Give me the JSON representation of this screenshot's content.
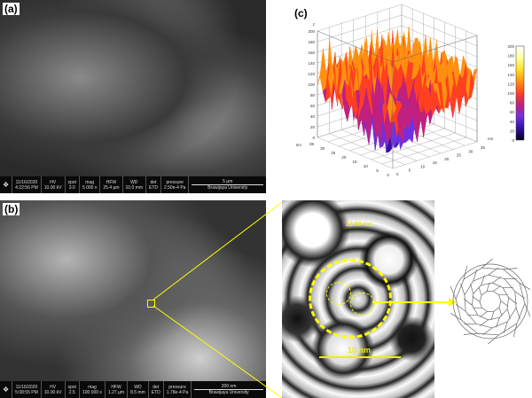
{
  "panels": {
    "a": {
      "label": "(a)",
      "info": {
        "date": "11/16/2020",
        "time": "4:22:56 PM",
        "hv_label": "HV",
        "hv": "10.00 kV",
        "spot_label": "spot",
        "spot": "3.0",
        "mag_label": "mag",
        "mag": "5 000 x",
        "hfw_label": "HFW",
        "hfw": "25.4 µm",
        "wd_label": "WD",
        "wd": "10.0 mm",
        "det_label": "det",
        "det": "ETD",
        "pressure_label": "pressure",
        "pressure": "2.50e-4 Pa",
        "scale": "5 µm",
        "institution": "Brawijaya University"
      }
    },
    "b": {
      "label": "(b)",
      "info": {
        "date": "11/16/2020",
        "time": "5:08:55 PM",
        "hv_label": "HV",
        "hv": "10.00 kV",
        "spot_label": "spot",
        "spot": "2.5",
        "mag_label": "mag",
        "mag": "100 000 x",
        "hfw_label": "HFW",
        "hfw": "1.27 µm",
        "wd_label": "WD",
        "wd": "8.5 mm",
        "det_label": "det",
        "det": "ETD",
        "pressure_label": "pressure",
        "pressure": "1.78e-4 Pa",
        "scale": "200 nm",
        "institution": "Brawijaya University"
      },
      "zoom_scale": "10 nm",
      "zoom_top_text": "22.50 nm"
    },
    "c": {
      "label": "(c)"
    }
  },
  "chart_data": {
    "type": "surface3d",
    "z_ticks": [
      "0",
      "20",
      "40",
      "60",
      "80",
      "100",
      "120",
      "140",
      "160",
      "180",
      "200"
    ],
    "z_label": "z",
    "x_label": "nm",
    "x_ticks": [
      "0",
      "5",
      "10",
      "15",
      "20",
      "25",
      "30",
      "35"
    ],
    "y_label": "nm",
    "y_ticks": [
      "0",
      "5",
      "10",
      "15",
      "20",
      "25",
      "30",
      "35"
    ],
    "colorbar": {
      "min": 0,
      "max": 200,
      "ticks": [
        "0",
        "20",
        "40",
        "60",
        "80",
        "100",
        "120",
        "140",
        "160",
        "180",
        "200"
      ],
      "colors": [
        "#000020",
        "#3010a0",
        "#7030e0",
        "#c02080",
        "#ff4020",
        "#ff9010",
        "#ffe020",
        "#ffffa0",
        "#ffffff"
      ]
    },
    "zlim": [
      0,
      200
    ]
  }
}
